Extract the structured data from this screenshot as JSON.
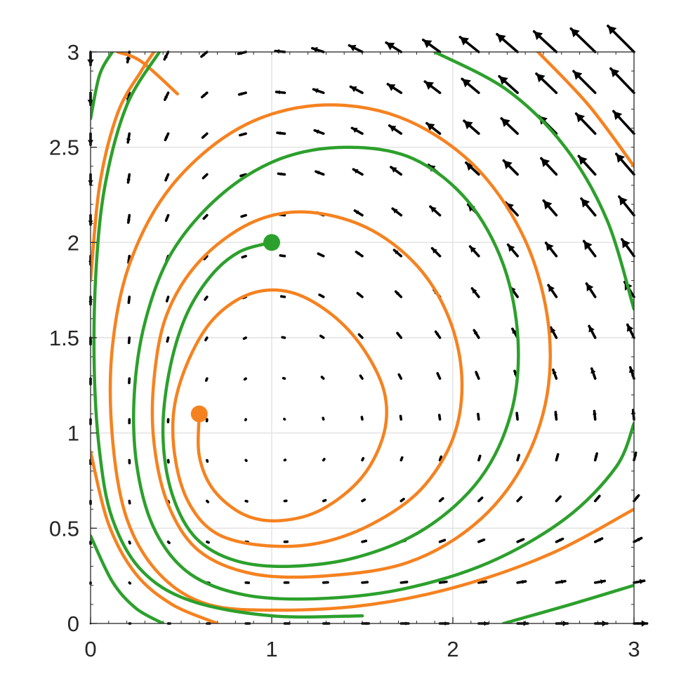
{
  "chart_data": {
    "type": "quiver",
    "title": "",
    "xlabel": "",
    "ylabel": "",
    "xlim": [
      0,
      3
    ],
    "ylim": [
      0,
      3
    ],
    "xticks": [
      "0",
      "1",
      "2",
      "3"
    ],
    "yticks": [
      "0",
      "0.5",
      "1",
      "1.5",
      "2",
      "2.5",
      "3"
    ],
    "grid": true,
    "vector_field": {
      "description": "direction field of dx/dt = x - x*y, dy/dt = x*y - y on a 15 x 15 grid",
      "grid_min": 0,
      "grid_max": 3,
      "grid_count": 15,
      "color": "#000000"
    },
    "series": [
      {
        "color": "#f58220",
        "start_marker": [
          0.6,
          1.1
        ],
        "points": [
          [
            0.6,
            1.1
          ],
          [
            0.6,
            0.88
          ],
          [
            0.68,
            0.7
          ],
          [
            0.85,
            0.57
          ],
          [
            1.05,
            0.54
          ],
          [
            1.28,
            0.6
          ],
          [
            1.5,
            0.77
          ],
          [
            1.62,
            1.0
          ],
          [
            1.62,
            1.22
          ],
          [
            1.5,
            1.45
          ],
          [
            1.32,
            1.63
          ],
          [
            1.1,
            1.74
          ],
          [
            0.88,
            1.73
          ],
          [
            0.68,
            1.6
          ],
          [
            0.54,
            1.38
          ],
          [
            0.46,
            1.12
          ],
          [
            0.47,
            0.85
          ],
          [
            0.55,
            0.62
          ],
          [
            0.7,
            0.47
          ],
          [
            0.95,
            0.41
          ],
          [
            1.25,
            0.42
          ],
          [
            1.55,
            0.52
          ],
          [
            1.82,
            0.7
          ],
          [
            2.0,
            0.97
          ],
          [
            2.05,
            1.28
          ],
          [
            1.98,
            1.6
          ],
          [
            1.8,
            1.88
          ],
          [
            1.52,
            2.08
          ],
          [
            1.18,
            2.16
          ],
          [
            0.88,
            2.1
          ],
          [
            0.6,
            1.9
          ],
          [
            0.42,
            1.62
          ],
          [
            0.35,
            1.28
          ],
          [
            0.35,
            0.95
          ],
          [
            0.43,
            0.62
          ],
          [
            0.6,
            0.38
          ],
          [
            0.9,
            0.26
          ],
          [
            1.3,
            0.25
          ],
          [
            1.75,
            0.32
          ],
          [
            2.12,
            0.52
          ],
          [
            2.38,
            0.82
          ],
          [
            2.52,
            1.2
          ],
          [
            2.52,
            1.62
          ],
          [
            2.38,
            2.05
          ],
          [
            2.1,
            2.42
          ],
          [
            1.7,
            2.66
          ],
          [
            1.25,
            2.72
          ],
          [
            0.82,
            2.6
          ],
          [
            0.45,
            2.3
          ],
          [
            0.22,
            1.9
          ],
          [
            0.12,
            1.45
          ],
          [
            0.12,
            0.98
          ],
          [
            0.2,
            0.55
          ],
          [
            0.38,
            0.26
          ],
          [
            0.65,
            0.1
          ],
          [
            1.05,
            0.07
          ],
          [
            1.55,
            0.1
          ],
          [
            2.05,
            0.2
          ],
          [
            2.55,
            0.37
          ],
          [
            3.0,
            0.6
          ]
        ]
      },
      {
        "color": "#f58220",
        "start_marker": null,
        "points": [
          [
            0.0,
            1.8
          ],
          [
            0.05,
            2.3
          ],
          [
            0.15,
            2.68
          ],
          [
            0.28,
            2.9
          ],
          [
            0.35,
            3.0
          ]
        ]
      },
      {
        "color": "#f58220",
        "start_marker": null,
        "points": [
          [
            0.0,
            0.9
          ],
          [
            0.1,
            0.52
          ],
          [
            0.25,
            0.26
          ],
          [
            0.45,
            0.1
          ],
          [
            0.7,
            0.0
          ]
        ]
      },
      {
        "color": "#f58220",
        "start_marker": null,
        "points": [
          [
            2.47,
            3.0
          ],
          [
            2.75,
            2.72
          ],
          [
            3.0,
            2.4
          ]
        ]
      },
      {
        "color": "#f58220",
        "start_marker": null,
        "points": [
          [
            0.15,
            3.0
          ],
          [
            0.28,
            2.95
          ],
          [
            0.48,
            2.78
          ]
        ]
      },
      {
        "color": "#2ca02c",
        "start_marker": [
          1.0,
          2.0
        ],
        "points": [
          [
            1.0,
            2.0
          ],
          [
            0.82,
            1.95
          ],
          [
            0.66,
            1.82
          ],
          [
            0.52,
            1.6
          ],
          [
            0.43,
            1.3
          ],
          [
            0.4,
            0.98
          ],
          [
            0.45,
            0.68
          ],
          [
            0.58,
            0.45
          ],
          [
            0.8,
            0.33
          ],
          [
            1.1,
            0.3
          ],
          [
            1.48,
            0.35
          ],
          [
            1.85,
            0.5
          ],
          [
            2.15,
            0.76
          ],
          [
            2.32,
            1.1
          ],
          [
            2.36,
            1.48
          ],
          [
            2.28,
            1.88
          ],
          [
            2.08,
            2.22
          ],
          [
            1.78,
            2.44
          ],
          [
            1.42,
            2.5
          ],
          [
            1.05,
            2.44
          ],
          [
            0.72,
            2.25
          ],
          [
            0.45,
            1.95
          ],
          [
            0.3,
            1.58
          ],
          [
            0.24,
            1.18
          ],
          [
            0.26,
            0.8
          ],
          [
            0.36,
            0.48
          ],
          [
            0.55,
            0.26
          ],
          [
            0.85,
            0.15
          ],
          [
            1.25,
            0.13
          ],
          [
            1.72,
            0.18
          ],
          [
            2.2,
            0.32
          ],
          [
            2.62,
            0.55
          ],
          [
            2.9,
            0.82
          ],
          [
            3.0,
            1.05
          ]
        ]
      },
      {
        "color": "#2ca02c",
        "start_marker": null,
        "points": [
          [
            0.38,
            3.0
          ],
          [
            0.2,
            2.72
          ],
          [
            0.08,
            2.3
          ],
          [
            0.03,
            1.85
          ],
          [
            0.02,
            1.35
          ],
          [
            0.05,
            0.9
          ],
          [
            0.12,
            0.55
          ],
          [
            0.28,
            0.28
          ],
          [
            0.55,
            0.12
          ],
          [
            1.0,
            0.04
          ],
          [
            1.5,
            0.04
          ]
        ]
      },
      {
        "color": "#2ca02c",
        "start_marker": null,
        "points": [
          [
            0.0,
            2.65
          ],
          [
            0.05,
            2.88
          ],
          [
            0.12,
            3.0
          ]
        ]
      },
      {
        "color": "#2ca02c",
        "start_marker": null,
        "points": [
          [
            0.0,
            0.46
          ],
          [
            0.12,
            0.22
          ],
          [
            0.25,
            0.08
          ],
          [
            0.4,
            0.0
          ]
        ]
      },
      {
        "color": "#2ca02c",
        "start_marker": null,
        "points": [
          [
            1.9,
            3.0
          ],
          [
            2.3,
            2.8
          ],
          [
            2.62,
            2.5
          ],
          [
            2.85,
            2.12
          ],
          [
            3.0,
            1.65
          ]
        ]
      },
      {
        "color": "#2ca02c",
        "start_marker": null,
        "points": [
          [
            2.28,
            0.0
          ],
          [
            2.65,
            0.1
          ],
          [
            3.0,
            0.2
          ]
        ]
      }
    ]
  }
}
